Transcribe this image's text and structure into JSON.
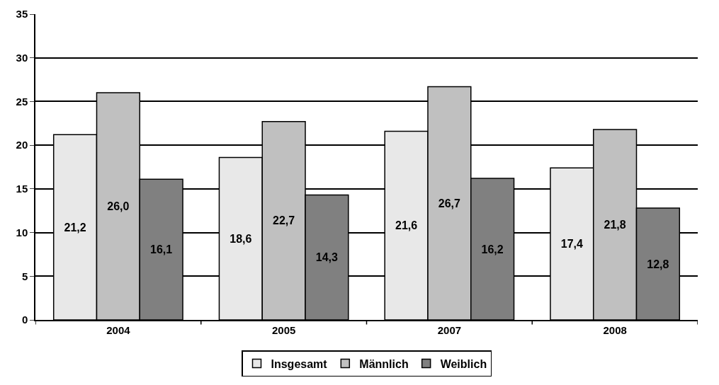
{
  "chart_data": {
    "type": "bar",
    "categories": [
      "2004",
      "2005",
      "2007",
      "2008"
    ],
    "series": [
      {
        "name": "Insgesamt",
        "color": "#e8e8e8",
        "values": [
          21.2,
          18.6,
          21.6,
          17.4
        ],
        "value_labels": [
          "21,2",
          "18,6",
          "21,6",
          "17,4"
        ]
      },
      {
        "name": "Männlich",
        "color": "#c0c0c0",
        "values": [
          26.0,
          22.7,
          26.7,
          21.8
        ],
        "value_labels": [
          "26,0",
          "22,7",
          "26,7",
          "21,8"
        ]
      },
      {
        "name": "Weiblich",
        "color": "#808080",
        "values": [
          16.1,
          14.3,
          16.2,
          12.8
        ],
        "value_labels": [
          "16,1",
          "14,3",
          "16,2",
          "12,8"
        ]
      }
    ],
    "ylim": [
      0,
      35
    ],
    "yticks": [
      0,
      5,
      10,
      15,
      20,
      25,
      30,
      35
    ],
    "grid": "y",
    "legend": "bottom"
  }
}
